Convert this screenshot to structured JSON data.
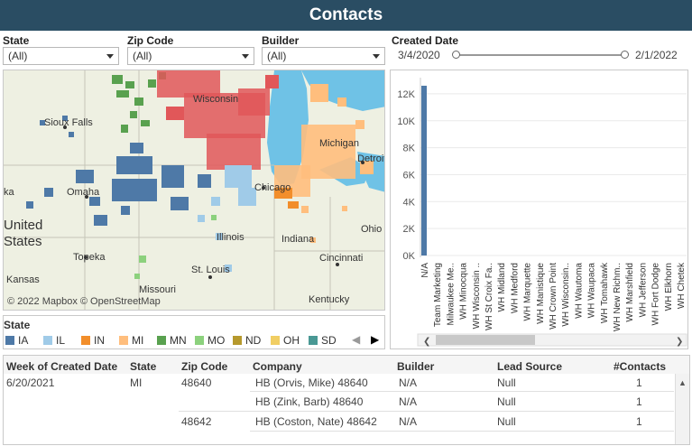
{
  "title": "Contacts",
  "filters": {
    "state": {
      "label": "State",
      "value": "(All)"
    },
    "zip": {
      "label": "Zip Code",
      "value": "(All)"
    },
    "builder": {
      "label": "Builder",
      "value": "(All)"
    },
    "created": {
      "label": "Created Date",
      "start": "3/4/2020",
      "end": "2/1/2022"
    }
  },
  "map": {
    "attribution": "© 2022 Mapbox © OpenStreetMap",
    "labels": [
      "Sioux Falls",
      "Wisconsin",
      "Michigan",
      "Detroit",
      "Omaha",
      "Chicago",
      "Illinois",
      "Indiana",
      "Ohio",
      "United",
      "States",
      "Topeka",
      "Kansas",
      "St. Louis",
      "Missouri",
      "Cincinnati",
      "Kentucky"
    ]
  },
  "legend": {
    "title": "State",
    "items": [
      {
        "label": "IA",
        "color": "#4e79a7"
      },
      {
        "label": "IL",
        "color": "#a0cbe8"
      },
      {
        "label": "IN",
        "color": "#f28e2b"
      },
      {
        "label": "MI",
        "color": "#ffbe7d"
      },
      {
        "label": "MN",
        "color": "#59a14f"
      },
      {
        "label": "MO",
        "color": "#8cd17d"
      },
      {
        "label": "ND",
        "color": "#b6992d"
      },
      {
        "label": "OH",
        "color": "#f1ce63"
      },
      {
        "label": "SD",
        "color": "#499894"
      }
    ]
  },
  "chart_data": {
    "type": "bar",
    "categories": [
      "N/A",
      "Team Marketing",
      "Milwaukee Me..",
      "WH Minocqua",
      "WH Wisconsin ..",
      "WH St Croix Fa..",
      "WH Midland",
      "WH Medford",
      "WH Marquette",
      "WH Manistique",
      "WH Crown Point",
      "WH Wisconsin..",
      "WH Wautoma",
      "WH Waupaca",
      "WH Tomahawk",
      "WH New Richm..",
      "WH Marshfield",
      "WH Jefferson",
      "WH Fort Dodge",
      "WH Elkhorn",
      "WH Chetek"
    ],
    "values": [
      12600,
      0,
      0,
      0,
      0,
      0,
      0,
      0,
      0,
      0,
      0,
      0,
      0,
      0,
      0,
      0,
      0,
      0,
      0,
      0,
      0
    ],
    "yticks": [
      "0K",
      "2K",
      "4K",
      "6K",
      "8K",
      "10K",
      "12K"
    ],
    "ylim": [
      0,
      13200
    ],
    "color": "#4e79a7"
  },
  "table": {
    "columns": [
      "Week of Created Date",
      "State",
      "Zip Code",
      "Company",
      "Builder",
      "Lead Source",
      "#Contacts"
    ],
    "rows": [
      {
        "week": "6/20/2021",
        "state": "MI",
        "zip": "48640",
        "company": "HB (Orvis, Mike) 48640",
        "builder": "N/A",
        "lead": "Null",
        "count": "1"
      },
      {
        "week": "",
        "state": "",
        "zip": "",
        "company": "HB (Zink, Barb) 48640",
        "builder": "N/A",
        "lead": "Null",
        "count": "1"
      },
      {
        "week": "",
        "state": "",
        "zip": "48642",
        "company": "HB (Coston, Nate) 48642",
        "builder": "N/A",
        "lead": "Null",
        "count": "1"
      }
    ]
  }
}
